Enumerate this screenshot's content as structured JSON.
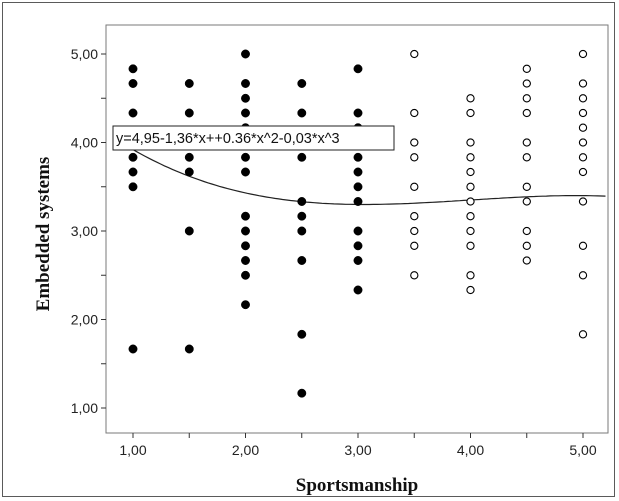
{
  "chart_data": {
    "type": "scatter",
    "title": "",
    "xlabel": "Sportsmanship",
    "ylabel": "Embedded systems",
    "xlim": [
      0.75,
      5.2
    ],
    "ylim": [
      0.75,
      5.2
    ],
    "x_ticks": [
      1,
      1.5,
      2,
      2.5,
      3,
      3.5,
      4,
      4.5,
      5
    ],
    "x_tick_labels": [
      "1,00",
      "",
      "2,00",
      "",
      "3,00",
      "",
      "4,00",
      "",
      "5,00"
    ],
    "y_ticks": [
      1,
      1.5,
      2,
      2.5,
      3,
      3.5,
      4,
      4.5,
      5
    ],
    "y_tick_labels": [
      "1,00",
      "",
      "2,00",
      "",
      "3,00",
      "",
      "4,00",
      "",
      "5,00"
    ],
    "grid": false,
    "fit_equation": "y=4,95-1,36*x++0.36*x^2-0,03*x^3",
    "fit_coefficients": [
      4.95,
      -1.36,
      0.36,
      -0.03
    ],
    "series": [
      {
        "marker": "filled",
        "color": "#000000",
        "points": [
          [
            1,
            4.833
          ],
          [
            1,
            4.667
          ],
          [
            1,
            4.333
          ],
          [
            1,
            4.0
          ],
          [
            1,
            3.833
          ],
          [
            1,
            3.667
          ],
          [
            1,
            3.5
          ],
          [
            1,
            1.667
          ],
          [
            1.5,
            4.667
          ],
          [
            1.5,
            4.333
          ],
          [
            1.5,
            4.0
          ],
          [
            1.5,
            3.833
          ],
          [
            1.5,
            3.667
          ],
          [
            1.5,
            3.0
          ],
          [
            1.5,
            1.667
          ],
          [
            2,
            5.0
          ],
          [
            2,
            4.667
          ],
          [
            2,
            4.5
          ],
          [
            2,
            4.333
          ],
          [
            2,
            4.167
          ],
          [
            2,
            4.0
          ],
          [
            2,
            3.833
          ],
          [
            2,
            3.667
          ],
          [
            2,
            3.167
          ],
          [
            2,
            3.0
          ],
          [
            2,
            2.833
          ],
          [
            2,
            2.667
          ],
          [
            2,
            2.5
          ],
          [
            2,
            2.167
          ],
          [
            2.5,
            4.667
          ],
          [
            2.5,
            4.333
          ],
          [
            2.5,
            4.0
          ],
          [
            2.5,
            3.833
          ],
          [
            2.5,
            3.333
          ],
          [
            2.5,
            3.167
          ],
          [
            2.5,
            3.0
          ],
          [
            2.5,
            2.667
          ],
          [
            2.5,
            1.833
          ],
          [
            2.5,
            1.167
          ],
          [
            3,
            4.833
          ],
          [
            3,
            4.333
          ],
          [
            3,
            4.167
          ],
          [
            3,
            4.0
          ],
          [
            3,
            3.833
          ],
          [
            3,
            3.667
          ],
          [
            3,
            3.5
          ],
          [
            3,
            3.333
          ],
          [
            3,
            3.0
          ],
          [
            3,
            2.833
          ],
          [
            3,
            2.667
          ],
          [
            3,
            2.333
          ]
        ]
      },
      {
        "marker": "open",
        "color": "#000000",
        "points": [
          [
            3.5,
            5.0
          ],
          [
            3.5,
            4.333
          ],
          [
            3.5,
            4.0
          ],
          [
            3.5,
            3.833
          ],
          [
            3.5,
            3.5
          ],
          [
            3.5,
            3.167
          ],
          [
            3.5,
            3.0
          ],
          [
            3.5,
            2.833
          ],
          [
            3.5,
            2.5
          ],
          [
            4,
            4.5
          ],
          [
            4,
            4.333
          ],
          [
            4,
            4.0
          ],
          [
            4,
            3.833
          ],
          [
            4,
            3.667
          ],
          [
            4,
            3.5
          ],
          [
            4,
            3.333
          ],
          [
            4,
            3.167
          ],
          [
            4,
            3.0
          ],
          [
            4,
            2.833
          ],
          [
            4,
            2.5
          ],
          [
            4,
            2.333
          ],
          [
            4.5,
            4.833
          ],
          [
            4.5,
            4.667
          ],
          [
            4.5,
            4.5
          ],
          [
            4.5,
            4.333
          ],
          [
            4.5,
            4.0
          ],
          [
            4.5,
            3.833
          ],
          [
            4.5,
            3.5
          ],
          [
            4.5,
            3.333
          ],
          [
            4.5,
            3.0
          ],
          [
            4.5,
            2.833
          ],
          [
            4.5,
            2.667
          ],
          [
            5,
            5.0
          ],
          [
            5,
            4.667
          ],
          [
            5,
            4.5
          ],
          [
            5,
            4.333
          ],
          [
            5,
            4.167
          ],
          [
            5,
            4.0
          ],
          [
            5,
            3.833
          ],
          [
            5,
            3.667
          ],
          [
            5,
            3.333
          ],
          [
            5,
            2.833
          ],
          [
            5,
            2.5
          ],
          [
            5,
            1.833
          ]
        ]
      }
    ]
  }
}
